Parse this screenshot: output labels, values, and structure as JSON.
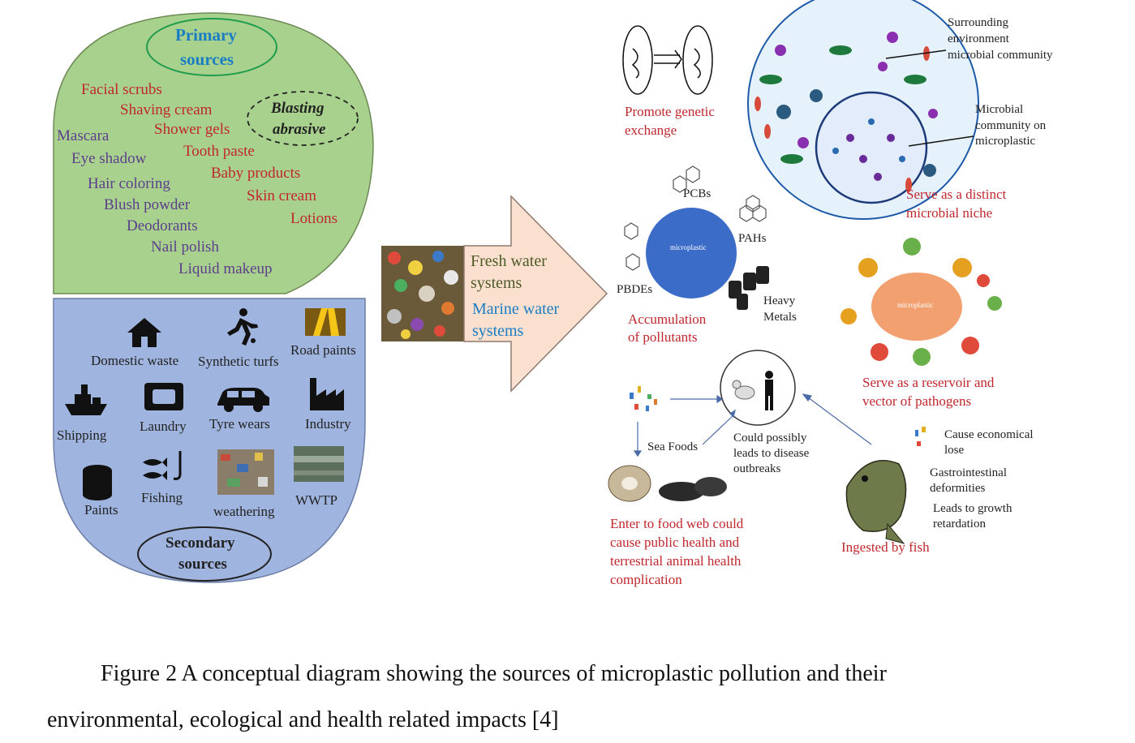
{
  "primary_sources": {
    "title_line1": "Primary",
    "title_line2": "sources",
    "blasting_line1": "Blasting",
    "blasting_line2": "abrasive",
    "items": [
      "Facial scrubs",
      "Shaving cream",
      "Shower gels",
      "Tooth paste",
      "Baby products",
      "Skin cream",
      "Lotions",
      "Mascara",
      "Eye shadow",
      "Hair coloring",
      "Blush powder",
      "Deodorants",
      "Nail polish",
      "Liquid makeup"
    ]
  },
  "secondary_sources": {
    "title_line1": "Secondary",
    "title_line2": "sources",
    "items": [
      "Domestic waste",
      "Synthetic turfs",
      "Road paints",
      "Shipping",
      "Laundry",
      "Tyre wears",
      "Industry",
      "Paints",
      "Fishing",
      "weathering",
      "WWTP"
    ]
  },
  "arrow": {
    "fresh_line1": "Fresh water",
    "fresh_line2": "systems",
    "marine_line1": "Marine water",
    "marine_line2": "systems"
  },
  "impacts": {
    "genetic_line1": "Promote genetic",
    "genetic_line2": "exchange",
    "surrounding_line1": "Surrounding",
    "surrounding_line2": "environment",
    "surrounding_line3": "microbial community",
    "community_line1": "Microbial",
    "community_line2": "community on",
    "community_line3": "microplastic",
    "niche_line1": "Serve as a distinct",
    "niche_line2": "microbial niche",
    "pcbs": "PCBs",
    "pahs": "PAHs",
    "pbdes": "PBDEs",
    "heavy_line1": "Heavy",
    "heavy_line2": "Metals",
    "microplastic": "microplastic",
    "accum_line1": "Accumulation",
    "accum_line2": "of pollutants",
    "reservoir_line1": "Serve as a reservoir and",
    "reservoir_line2": "vector of pathogens",
    "sea_foods": "Sea Foods",
    "disease_line1": "Could possibly",
    "disease_line2": "leads to  disease",
    "disease_line3": "outbreaks",
    "food_line1": "Enter to food web could",
    "food_line2": "cause public health and",
    "food_line3": "terrestrial animal health",
    "food_line4": "complication",
    "econ_line1": "Cause economical",
    "econ_line2": "lose",
    "gastro_line1": "Gastrointestinal",
    "gastro_line2": "deformities",
    "growth_line1": "Leads to growth",
    "growth_line2": "retardation",
    "fish": "Ingested by fish"
  },
  "caption": {
    "line1": "Figure 2 A conceptual diagram showing the sources of microplastic pollution and their",
    "line2": "environmental, ecological and health related impacts [4]"
  },
  "colors": {
    "primary_fill": "#a9d18e",
    "secondary_fill": "#9fb4de",
    "arrow_fill": "#fbe0d0",
    "microplastic_blue": "#3a6cc8",
    "microplastic_orange": "#f2a070",
    "accent_red": "#c0272d",
    "accent_purple": "#5b3f8c"
  }
}
